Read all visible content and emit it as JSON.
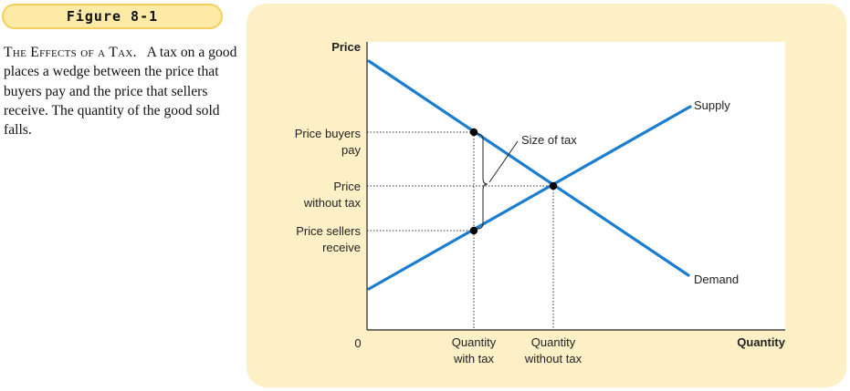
{
  "figure_label": "Figure 8-1",
  "caption": {
    "heading": "The Effects of a Tax.",
    "text": "A tax on a good places a wedge between the price that buyers pay and the price that sellers receive. The quantity of the good sold falls."
  },
  "diagram": {
    "y_axis_label": "Price",
    "x_axis_label": "Quantity",
    "origin_label": "0",
    "supply_label": "Supply",
    "demand_label": "Demand",
    "tax_label": "Size of tax",
    "price_buyers": [
      "Price buyers",
      "pay"
    ],
    "price_no_tax": [
      "Price",
      "without tax"
    ],
    "price_sellers": [
      "Price sellers",
      "receive"
    ],
    "qty_tax": [
      "Quantity",
      "with tax"
    ],
    "qty_no_tax": [
      "Quantity",
      "without tax"
    ],
    "colors": {
      "curve": "#1a7dcf",
      "panel": "#fdf0c6",
      "tab_fill": "#fdeaa6",
      "tab_border": "#f3cf5e"
    }
  }
}
